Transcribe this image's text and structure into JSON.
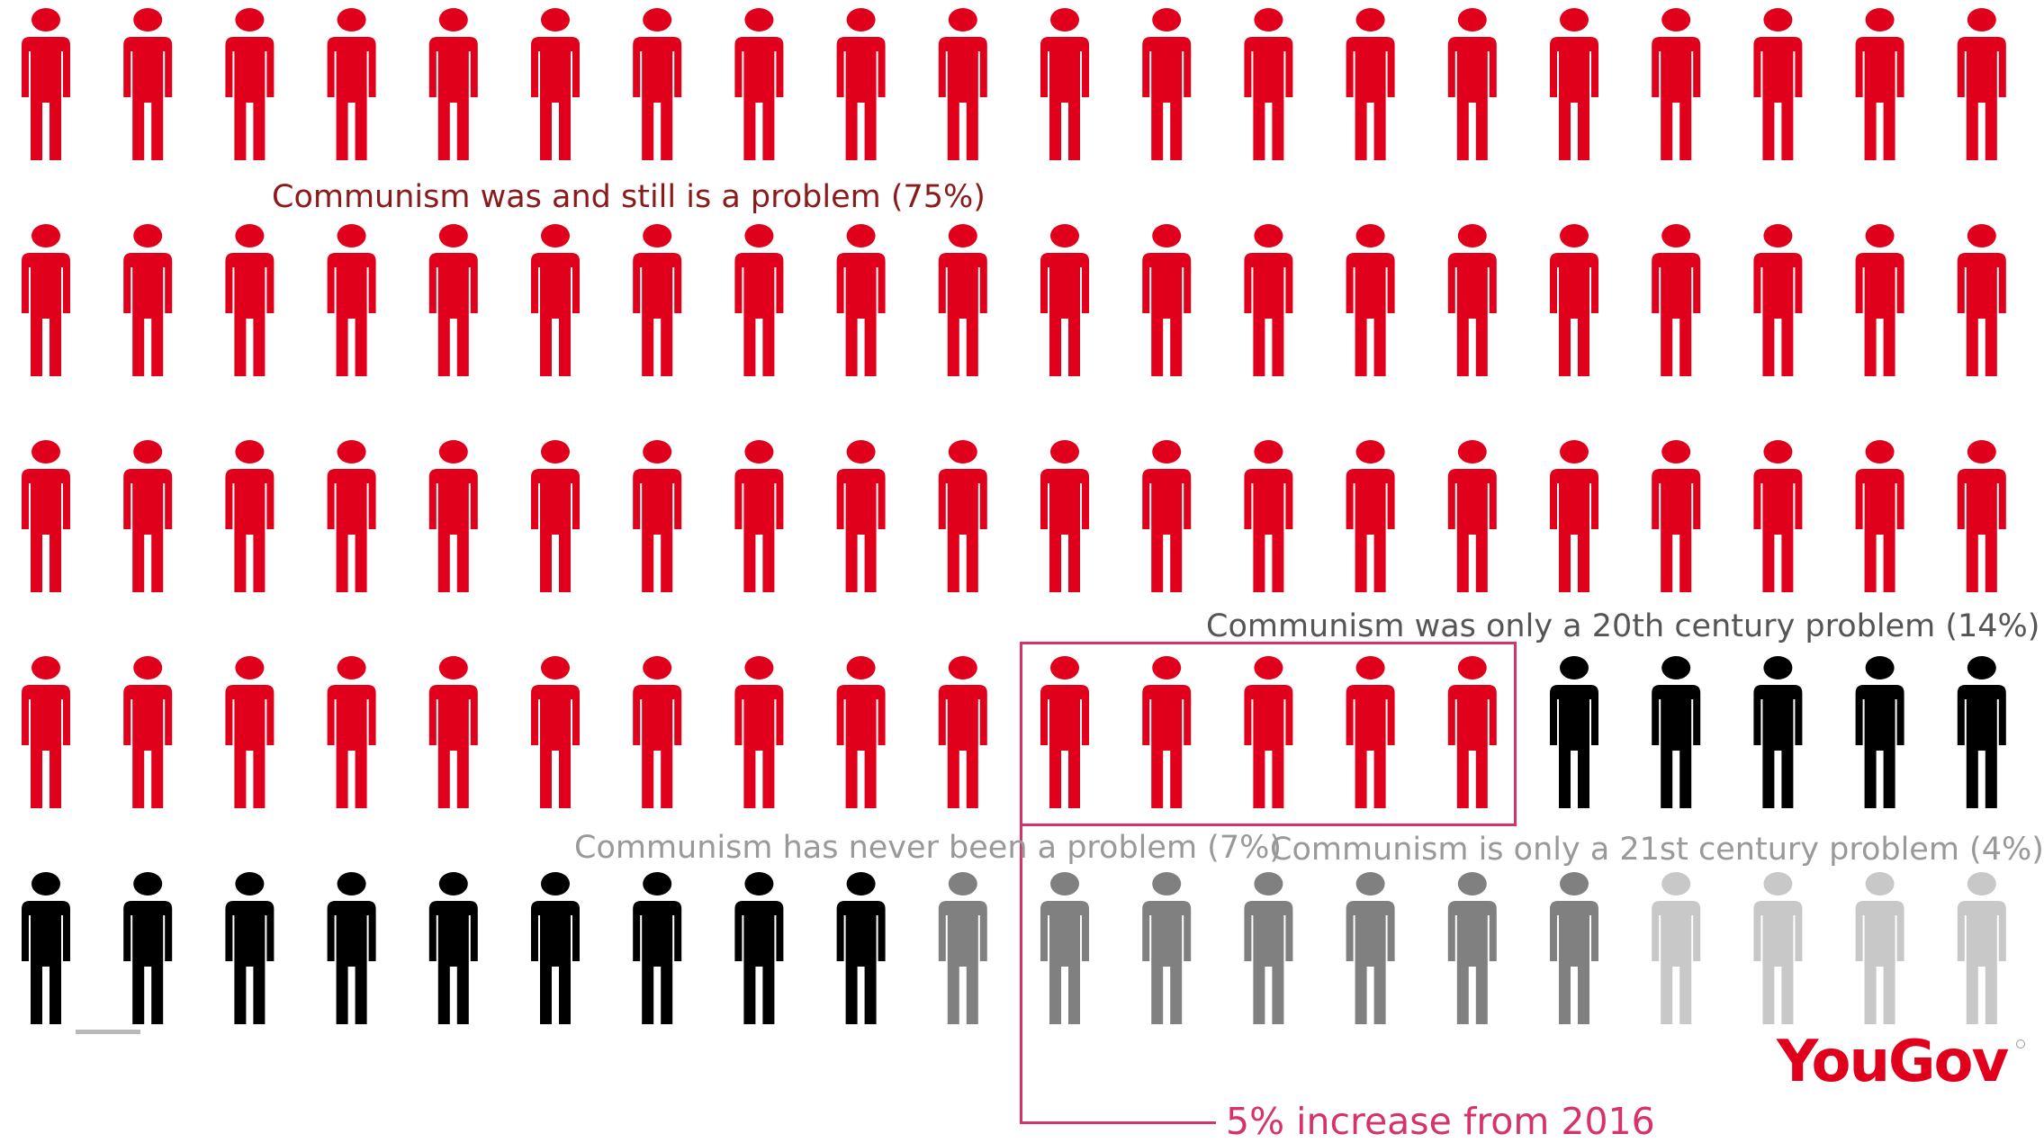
{
  "colors": {
    "still_problem": "#e0001b",
    "twentieth_century": "#000000",
    "never": "#808080",
    "twenty_first": "#c8c8c8",
    "annotation": "#d6336c",
    "label_dark": "#8b1a1a",
    "label_grey": "#555555",
    "label_light": "#999999",
    "logo": "#e0001b"
  },
  "chart_data": {
    "type": "pictogram",
    "unit": "percent of respondents",
    "rows": 5,
    "per_row": 20,
    "segments": [
      {
        "name": "Communism was and still is a problem (75%)",
        "value": 75,
        "color_key": "still_problem"
      },
      {
        "name": "Communism was only a 20th century problem (14%)",
        "value": 14,
        "color_key": "twentieth_century"
      },
      {
        "name": "Communism has never been a problem (7%)",
        "value": 7,
        "color_key": "never"
      },
      {
        "name": "Communism is only a 21st century problem (4%)",
        "value": 4,
        "color_key": "twenty_first"
      }
    ],
    "annotation": {
      "text": "5% increase from 2016",
      "value": 5
    }
  },
  "logo": {
    "text": "YouGov"
  }
}
